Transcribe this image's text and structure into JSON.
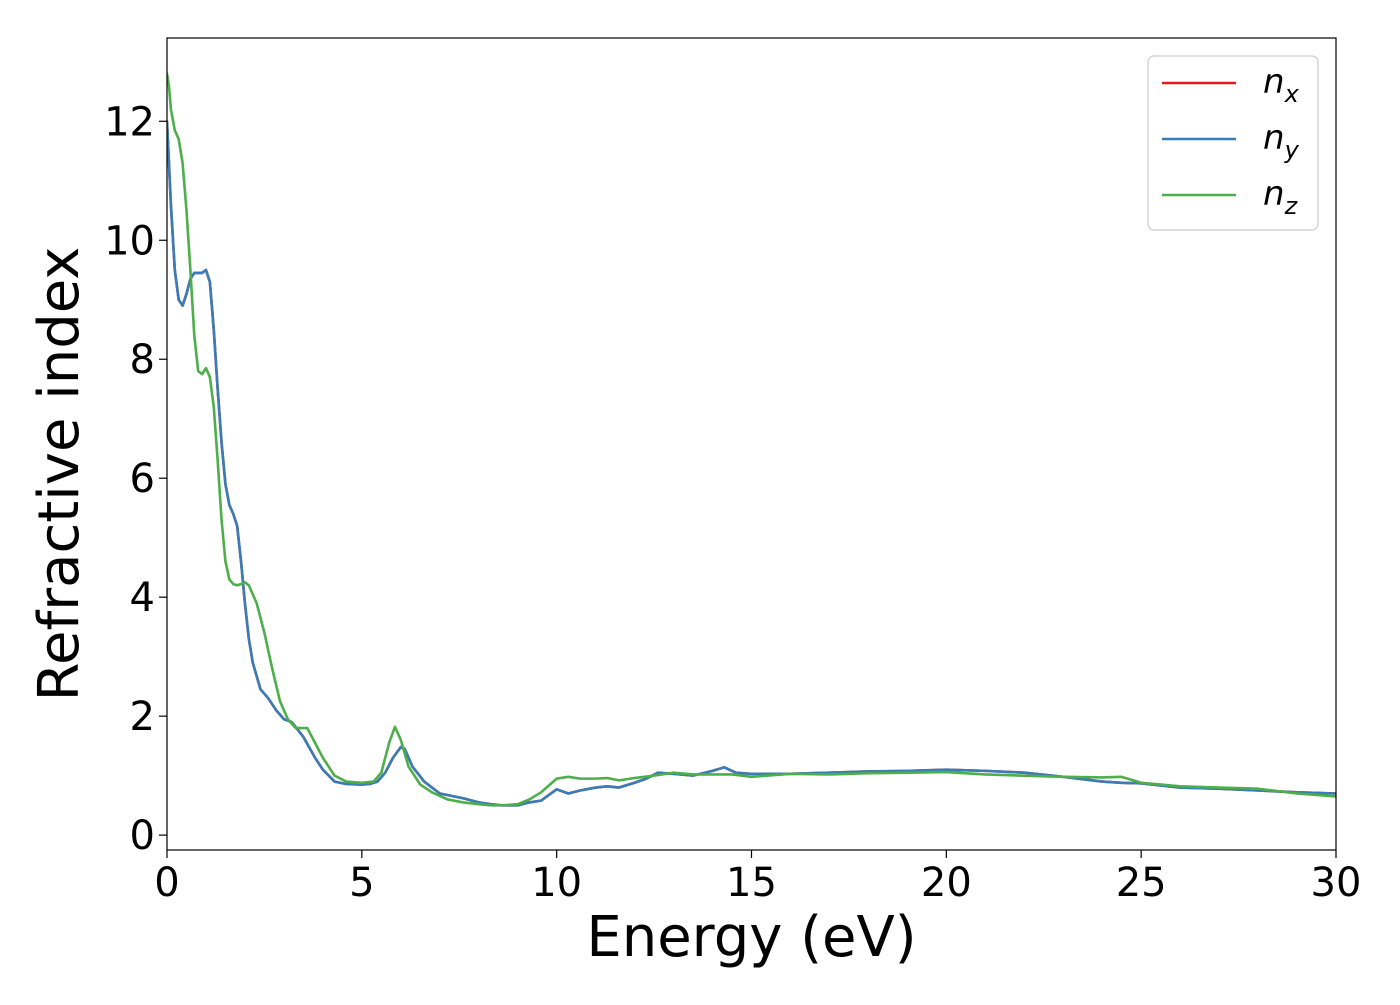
{
  "chart_data": {
    "type": "line",
    "title": "",
    "xlabel": "Energy (eV)",
    "ylabel": "Refractive index",
    "xlim": [
      0,
      30
    ],
    "ylim": [
      -0.25,
      13.4
    ],
    "xticks": [
      0,
      5,
      10,
      15,
      20,
      25,
      30
    ],
    "xtick_labels": [
      "0",
      "5",
      "10",
      "15",
      "20",
      "25",
      "30"
    ],
    "yticks": [
      0,
      2,
      4,
      6,
      8,
      10,
      12
    ],
    "ytick_labels": [
      "0",
      "2",
      "4",
      "6",
      "8",
      "10",
      "12"
    ],
    "grid": false,
    "legend_position": "top-right",
    "legend": [
      {
        "base": "n",
        "sub": "x"
      },
      {
        "base": "n",
        "sub": "y"
      },
      {
        "base": "n",
        "sub": "z"
      }
    ],
    "colors": {
      "n_x": "#e41a1c",
      "n_y": "#377eb8",
      "n_z": "#4daf4a"
    },
    "series": [
      {
        "name": "n_x",
        "x": [
          0,
          0.1,
          0.2,
          0.3,
          0.4,
          0.5,
          0.6,
          0.7,
          0.8,
          0.9,
          1.0,
          1.1,
          1.2,
          1.3,
          1.4,
          1.5,
          1.6,
          1.7,
          1.8,
          1.9,
          2.0,
          2.1,
          2.2,
          2.4,
          2.6,
          2.8,
          3.0,
          3.2,
          3.5,
          3.8,
          4.0,
          4.3,
          4.6,
          5.0,
          5.2,
          5.4,
          5.6,
          5.8,
          6.0,
          6.1,
          6.3,
          6.6,
          7.0,
          7.3,
          7.6,
          8.0,
          8.3,
          8.6,
          9.0,
          9.3,
          9.6,
          10.0,
          10.3,
          10.6,
          11.0,
          11.3,
          11.6,
          12.0,
          12.3,
          12.6,
          13.0,
          13.5,
          14.0,
          14.3,
          14.6,
          15.0,
          16.0,
          17.0,
          18.0,
          19.0,
          20.0,
          21.0,
          22.0,
          23.0,
          24.0,
          24.5,
          25.0,
          26.0,
          27.0,
          28.0,
          29.0,
          30.0
        ],
        "y": [
          12.0,
          10.6,
          9.5,
          9.0,
          8.9,
          9.1,
          9.35,
          9.45,
          9.45,
          9.45,
          9.5,
          9.3,
          8.5,
          7.5,
          6.6,
          5.9,
          5.55,
          5.4,
          5.2,
          4.6,
          3.9,
          3.3,
          2.9,
          2.45,
          2.3,
          2.1,
          1.95,
          1.9,
          1.65,
          1.3,
          1.1,
          0.9,
          0.86,
          0.85,
          0.86,
          0.9,
          1.05,
          1.3,
          1.48,
          1.45,
          1.15,
          0.9,
          0.7,
          0.66,
          0.62,
          0.55,
          0.52,
          0.5,
          0.5,
          0.55,
          0.58,
          0.77,
          0.7,
          0.75,
          0.8,
          0.82,
          0.8,
          0.88,
          0.95,
          1.05,
          1.03,
          1.0,
          1.08,
          1.14,
          1.05,
          1.03,
          1.03,
          1.05,
          1.07,
          1.08,
          1.1,
          1.08,
          1.05,
          0.98,
          0.9,
          0.88,
          0.87,
          0.8,
          0.78,
          0.75,
          0.72,
          0.7
        ]
      },
      {
        "name": "n_y",
        "x": [
          0,
          0.1,
          0.2,
          0.3,
          0.4,
          0.5,
          0.6,
          0.7,
          0.8,
          0.9,
          1.0,
          1.1,
          1.2,
          1.3,
          1.4,
          1.5,
          1.6,
          1.7,
          1.8,
          1.9,
          2.0,
          2.1,
          2.2,
          2.4,
          2.6,
          2.8,
          3.0,
          3.2,
          3.5,
          3.8,
          4.0,
          4.3,
          4.6,
          5.0,
          5.2,
          5.4,
          5.6,
          5.8,
          6.0,
          6.1,
          6.3,
          6.6,
          7.0,
          7.3,
          7.6,
          8.0,
          8.3,
          8.6,
          9.0,
          9.3,
          9.6,
          10.0,
          10.3,
          10.6,
          11.0,
          11.3,
          11.6,
          12.0,
          12.3,
          12.6,
          13.0,
          13.5,
          14.0,
          14.3,
          14.6,
          15.0,
          16.0,
          17.0,
          18.0,
          19.0,
          20.0,
          21.0,
          22.0,
          23.0,
          24.0,
          24.5,
          25.0,
          26.0,
          27.0,
          28.0,
          29.0,
          30.0
        ],
        "y": [
          12.0,
          10.6,
          9.5,
          9.0,
          8.9,
          9.1,
          9.35,
          9.45,
          9.45,
          9.45,
          9.5,
          9.3,
          8.5,
          7.5,
          6.6,
          5.9,
          5.55,
          5.4,
          5.2,
          4.6,
          3.9,
          3.3,
          2.9,
          2.45,
          2.3,
          2.1,
          1.95,
          1.9,
          1.65,
          1.3,
          1.1,
          0.9,
          0.86,
          0.85,
          0.86,
          0.9,
          1.05,
          1.3,
          1.48,
          1.45,
          1.15,
          0.9,
          0.7,
          0.66,
          0.62,
          0.55,
          0.52,
          0.5,
          0.5,
          0.55,
          0.58,
          0.77,
          0.7,
          0.75,
          0.8,
          0.82,
          0.8,
          0.88,
          0.95,
          1.05,
          1.03,
          1.0,
          1.08,
          1.14,
          1.05,
          1.03,
          1.03,
          1.05,
          1.07,
          1.08,
          1.1,
          1.08,
          1.05,
          0.98,
          0.9,
          0.88,
          0.87,
          0.8,
          0.78,
          0.75,
          0.72,
          0.7
        ]
      },
      {
        "name": "n_z",
        "x": [
          0,
          0.05,
          0.1,
          0.2,
          0.3,
          0.4,
          0.5,
          0.6,
          0.7,
          0.8,
          0.9,
          1.0,
          1.1,
          1.2,
          1.3,
          1.4,
          1.5,
          1.6,
          1.7,
          1.8,
          1.9,
          2.0,
          2.1,
          2.2,
          2.3,
          2.5,
          2.7,
          2.9,
          3.1,
          3.3,
          3.6,
          4.0,
          4.3,
          4.6,
          5.0,
          5.3,
          5.5,
          5.7,
          5.85,
          6.0,
          6.2,
          6.5,
          6.8,
          7.2,
          7.6,
          8.0,
          8.3,
          8.6,
          9.0,
          9.3,
          9.6,
          10.0,
          10.3,
          10.6,
          11.0,
          11.3,
          11.6,
          12.0,
          12.5,
          13.0,
          13.5,
          14.0,
          14.5,
          15.0,
          16.0,
          17.0,
          18.0,
          19.0,
          20.0,
          21.0,
          22.0,
          23.0,
          24.0,
          24.5,
          25.0,
          26.0,
          27.0,
          28.0,
          29.0,
          30.0
        ],
        "y": [
          12.8,
          12.6,
          12.2,
          11.85,
          11.7,
          11.3,
          10.5,
          9.5,
          8.4,
          7.8,
          7.75,
          7.85,
          7.7,
          7.2,
          6.3,
          5.3,
          4.6,
          4.3,
          4.22,
          4.2,
          4.22,
          4.25,
          4.2,
          4.05,
          3.9,
          3.4,
          2.8,
          2.25,
          1.95,
          1.8,
          1.8,
          1.3,
          1.0,
          0.9,
          0.88,
          0.9,
          1.05,
          1.55,
          1.82,
          1.6,
          1.15,
          0.85,
          0.72,
          0.6,
          0.55,
          0.52,
          0.5,
          0.5,
          0.52,
          0.6,
          0.72,
          0.95,
          0.98,
          0.95,
          0.95,
          0.96,
          0.92,
          0.96,
          1.0,
          1.05,
          1.02,
          1.02,
          1.02,
          0.98,
          1.03,
          1.02,
          1.04,
          1.05,
          1.06,
          1.02,
          1.0,
          0.98,
          0.97,
          0.98,
          0.88,
          0.82,
          0.8,
          0.78,
          0.7,
          0.65
        ]
      }
    ]
  }
}
